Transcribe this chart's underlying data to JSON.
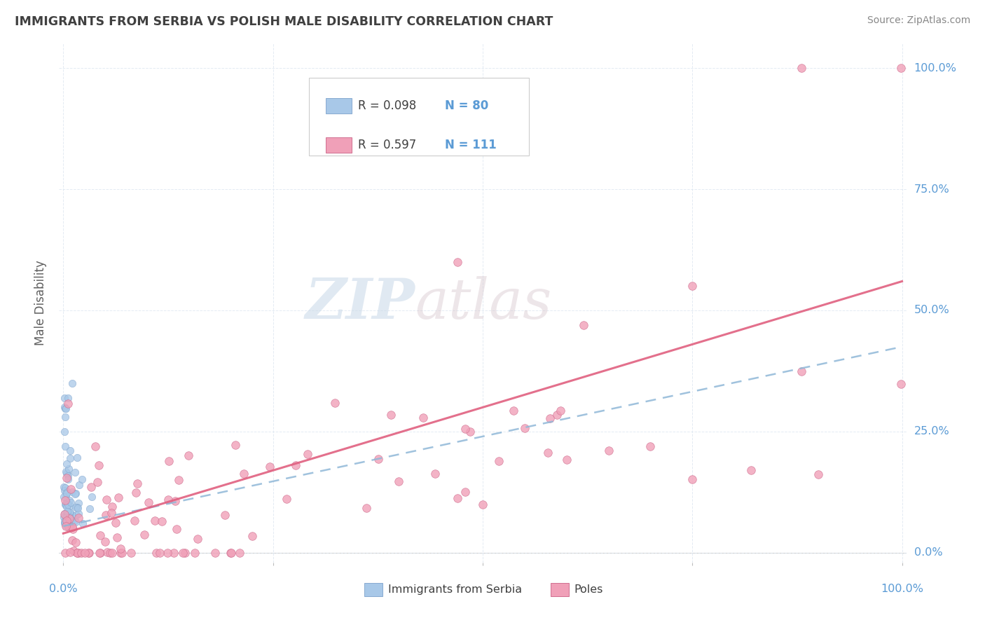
{
  "title": "IMMIGRANTS FROM SERBIA VS POLISH MALE DISABILITY CORRELATION CHART",
  "source": "Source: ZipAtlas.com",
  "ylabel": "Male Disability",
  "watermark_zip": "ZIP",
  "watermark_atlas": "atlas",
  "legend_serbia_r": "0.098",
  "legend_serbia_n": "80",
  "legend_poles_r": "0.597",
  "legend_poles_n": "111",
  "serbia_color": "#a8c8e8",
  "serbia_edge_color": "#88aad0",
  "serbia_line_color": "#90b8d8",
  "poles_color": "#f0a0b8",
  "poles_edge_color": "#d07090",
  "poles_line_color": "#e06080",
  "tick_color": "#5b9bd5",
  "grid_color": "#dde6f0",
  "title_color": "#404040",
  "label_color": "#606060",
  "background_color": "#ffffff",
  "serbia_intercept": 0.055,
  "serbia_slope": 0.37,
  "poles_intercept": 0.04,
  "poles_slope": 0.52
}
